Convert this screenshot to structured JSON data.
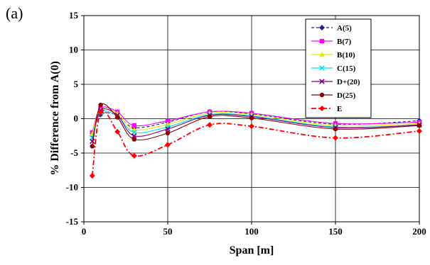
{
  "panel_label": "(a)",
  "chart_data": {
    "type": "line",
    "title": "",
    "xlabel": "Span [m]",
    "ylabel": "% Difference from A(0)",
    "xlim": [
      0,
      200
    ],
    "ylim": [
      -15,
      15
    ],
    "xticks": [
      0,
      50,
      100,
      150,
      200
    ],
    "yticks": [
      15,
      10,
      5,
      0,
      -5,
      -10,
      -15
    ],
    "grid": true,
    "legend_position": "top-right",
    "x": [
      5,
      10,
      20,
      30,
      50,
      75,
      100,
      150,
      200
    ],
    "series": [
      {
        "name": "A(5)",
        "color": "#1f1f8f",
        "dash": "4,3",
        "marker": "diamond",
        "values": [
          -2.5,
          0.6,
          0.5,
          -1.3,
          -0.5,
          1.0,
          0.7,
          -0.8,
          -0.3
        ]
      },
      {
        "name": "B(7)",
        "color": "#ff00ff",
        "dash": "",
        "marker": "square",
        "values": [
          -2.0,
          1.5,
          1.0,
          -1.0,
          -0.3,
          1.0,
          0.8,
          -0.7,
          -0.5
        ]
      },
      {
        "name": "B(10)",
        "color": "#e8e800",
        "dash": "",
        "marker": "triangle",
        "values": [
          -2.2,
          1.2,
          0.8,
          -1.6,
          -0.8,
          0.8,
          0.6,
          -1.0,
          -0.7
        ]
      },
      {
        "name": "C(15)",
        "color": "#00e5ee",
        "dash": "",
        "marker": "x",
        "values": [
          -2.8,
          0.9,
          0.4,
          -2.0,
          -1.2,
          0.6,
          0.4,
          -1.2,
          -0.9
        ]
      },
      {
        "name": "D+(20)",
        "color": "#800080",
        "dash": "",
        "marker": "x",
        "values": [
          -3.3,
          1.2,
          0.5,
          -2.5,
          -1.5,
          0.5,
          0.3,
          -1.3,
          -0.9
        ]
      },
      {
        "name": "D(25)",
        "color": "#8b0000",
        "dash": "",
        "marker": "circle",
        "values": [
          -4.0,
          2.0,
          0.2,
          -3.0,
          -2.1,
          0.3,
          0.1,
          -1.5,
          -1.0
        ]
      },
      {
        "name": "E",
        "color": "#ff0000",
        "dash": "7,3,2,3",
        "marker": "diamond",
        "values": [
          -8.3,
          1.0,
          -1.9,
          -5.4,
          -3.8,
          -0.9,
          -1.1,
          -2.8,
          -1.8
        ]
      }
    ]
  }
}
